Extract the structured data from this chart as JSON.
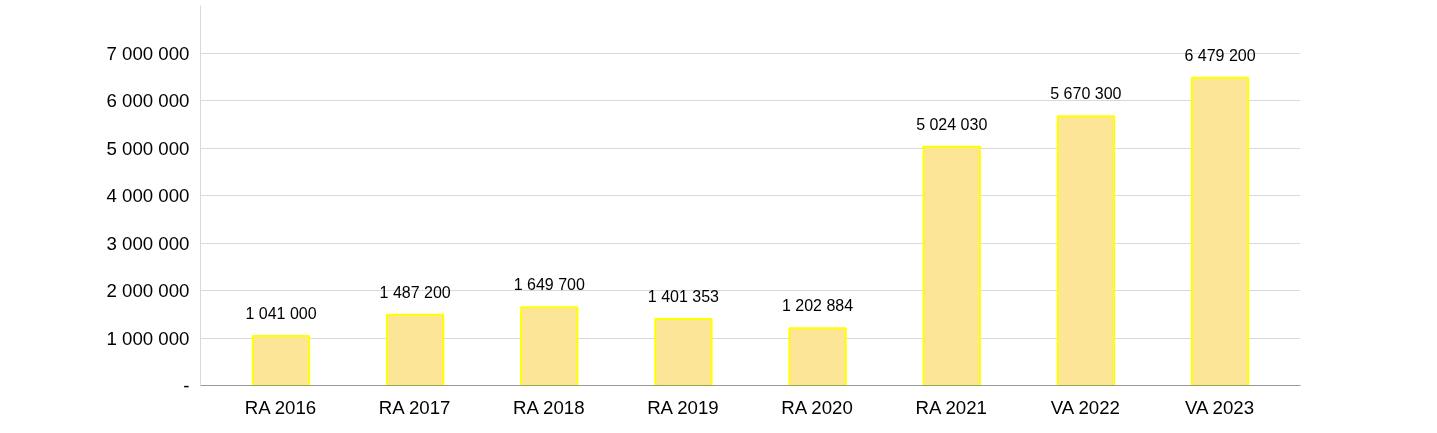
{
  "chart_data": {
    "type": "bar",
    "categories": [
      "RA 2016",
      "RA 2017",
      "RA 2018",
      "RA 2019",
      "RA 2020",
      "RA 2021",
      "VA 2022",
      "VA 2023"
    ],
    "values": [
      1041000,
      1487200,
      1649700,
      1401353,
      1202884,
      5024030,
      5670300,
      6479200
    ],
    "value_labels": [
      "1 041 000",
      "1 487 200",
      "1 649 700",
      "1 401 353",
      "1 202 884",
      "5 024 030",
      "5 670 300",
      "6 479 200"
    ],
    "color": "#fde598",
    "ylim": [
      0,
      8000000
    ],
    "yticks": [
      {
        "value": 0,
        "label": "-"
      },
      {
        "value": 1000000,
        "label": "1 000 000"
      },
      {
        "value": 2000000,
        "label": "2 000 000"
      },
      {
        "value": 3000000,
        "label": "3 000 000"
      },
      {
        "value": 4000000,
        "label": "4 000 000"
      },
      {
        "value": 5000000,
        "label": "5 000 000"
      },
      {
        "value": 6000000,
        "label": "6 000 000"
      },
      {
        "value": 7000000,
        "label": "7 000 000"
      }
    ],
    "grid": "y"
  }
}
